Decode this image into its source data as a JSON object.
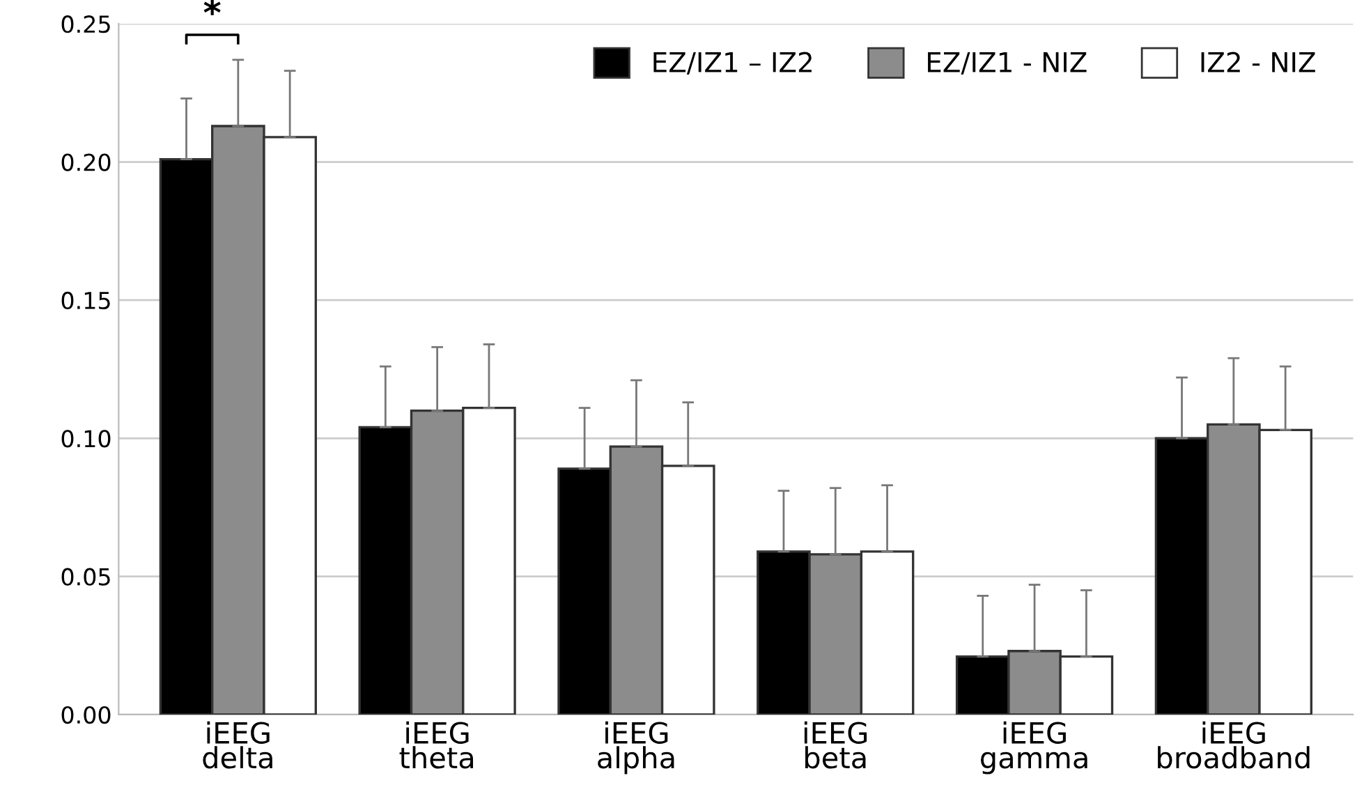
{
  "chart_data": {
    "type": "bar",
    "categories": [
      "iEEG\ndelta",
      "iEEG\ntheta",
      "iEEG\nalpha",
      "iEEG\nbeta",
      "iEEG\ngamma",
      "iEEG\nbroadband"
    ],
    "series": [
      {
        "name": "EZ/IZ1 – IZ2",
        "color": "#000000",
        "values": [
          0.201,
          0.104,
          0.089,
          0.059,
          0.021,
          0.1
        ],
        "errors": [
          [
            0.201,
            0.223
          ],
          [
            0.104,
            0.126
          ],
          [
            0.089,
            0.111
          ],
          [
            0.059,
            0.081
          ],
          [
            0.021,
            0.043
          ],
          [
            0.1,
            0.122
          ]
        ]
      },
      {
        "name": "EZ/IZ1 - NIZ",
        "color": "#8c8c8c",
        "values": [
          0.213,
          0.11,
          0.097,
          0.058,
          0.023,
          0.105
        ],
        "errors": [
          [
            0.213,
            0.237
          ],
          [
            0.11,
            0.133
          ],
          [
            0.097,
            0.121
          ],
          [
            0.058,
            0.082
          ],
          [
            0.023,
            0.047
          ],
          [
            0.105,
            0.129
          ]
        ]
      },
      {
        "name": "IZ2 - NIZ",
        "color": "#ffffff",
        "values": [
          0.209,
          0.111,
          0.09,
          0.059,
          0.021,
          0.103
        ],
        "errors": [
          [
            0.209,
            0.233
          ],
          [
            0.111,
            0.134
          ],
          [
            0.09,
            0.113
          ],
          [
            0.059,
            0.083
          ],
          [
            0.021,
            0.045
          ],
          [
            0.103,
            0.126
          ]
        ]
      }
    ],
    "ylim": [
      0,
      0.25
    ],
    "yticks": [
      {
        "value": 0,
        "label": "0.00"
      },
      {
        "value": 0.05,
        "label": "0.05"
      },
      {
        "value": 0.1,
        "label": "0.10"
      },
      {
        "value": 0.15,
        "label": "0.15"
      },
      {
        "value": 0.2,
        "label": "0.20"
      },
      {
        "value": 0.25,
        "label": "0.25"
      }
    ],
    "grid": "y",
    "legend": "top right",
    "annotations": [
      "*"
    ]
  }
}
